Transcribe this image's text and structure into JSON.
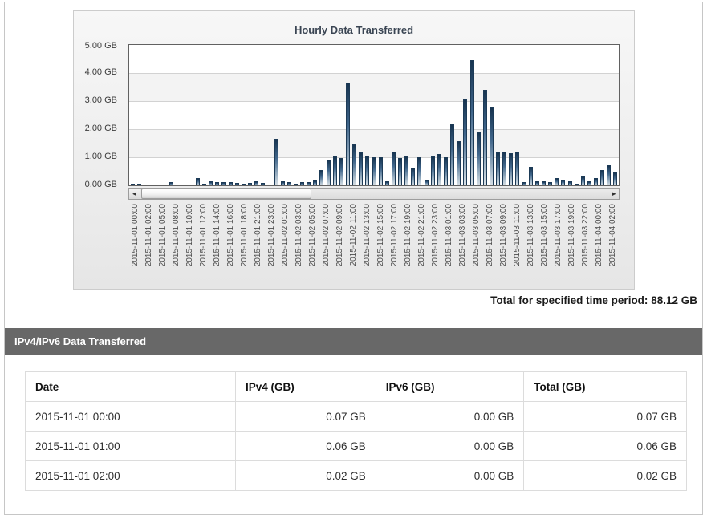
{
  "chart": {
    "title": "Hourly Data Transferred",
    "total_label": "Total for specified time period:",
    "total_value": "88.12 GB"
  },
  "chart_data": {
    "type": "bar",
    "title": "Hourly Data Transferred",
    "ylabel": "GB",
    "ylim": [
      0,
      5
    ],
    "grid": true,
    "y_ticks": [
      "5.00 GB",
      "4.00 GB",
      "3.00 GB",
      "2.00 GB",
      "1.00 GB",
      "0.00 GB"
    ],
    "x_tick_labels": [
      "2015-11-01 00:00",
      "2015-11-01 02:00",
      "2015-11-01 05:00",
      "2015-11-01 08:00",
      "2015-11-01 10:00",
      "2015-11-01 12:00",
      "2015-11-01 14:00",
      "2015-11-01 16:00",
      "2015-11-01 18:00",
      "2015-11-01 21:00",
      "2015-11-01 23:00",
      "2015-11-02 01:00",
      "2015-11-02 03:00",
      "2015-11-02 05:00",
      "2015-11-02 07:00",
      "2015-11-02 09:00",
      "2015-11-02 11:00",
      "2015-11-02 13:00",
      "2015-11-02 15:00",
      "2015-11-02 17:00",
      "2015-11-02 19:00",
      "2015-11-02 21:00",
      "2015-11-02 23:00",
      "2015-11-03 01:00",
      "2015-11-03 03:00",
      "2015-11-03 05:00",
      "2015-11-03 07:00",
      "2015-11-03 09:00",
      "2015-11-03 11:00",
      "2015-11-03 13:00",
      "2015-11-03 15:00",
      "2015-11-03 17:00",
      "2015-11-03 19:00",
      "2015-11-03 22:00",
      "2015-11-04 00:00",
      "2015-11-04 02:00"
    ],
    "values": [
      0.07,
      0.06,
      0.02,
      0.02,
      0.03,
      0.02,
      0.1,
      0.02,
      0.02,
      0.03,
      0.25,
      0.05,
      0.15,
      0.1,
      0.12,
      0.1,
      0.08,
      0.05,
      0.08,
      0.15,
      0.08,
      0.03,
      1.65,
      0.15,
      0.1,
      0.07,
      0.1,
      0.12,
      0.18,
      0.55,
      0.92,
      1.03,
      0.97,
      3.65,
      1.45,
      1.17,
      1.07,
      1.0,
      1.0,
      0.15,
      1.19,
      0.97,
      1.03,
      0.64,
      1.0,
      0.2,
      1.02,
      1.1,
      1.0,
      2.16,
      1.57,
      3.07,
      4.46,
      1.88,
      3.41,
      2.78,
      1.16,
      1.19,
      1.14,
      1.19,
      0.1,
      0.65,
      0.15,
      0.15,
      0.12,
      0.25,
      0.2,
      0.15,
      0.05,
      0.3,
      0.15,
      0.25,
      0.55,
      0.7,
      0.45
    ],
    "bar_color_top": "#173450",
    "bar_color_bottom": "#d8e0e6",
    "band_color": "#f3f3f3",
    "total_for_period": "88.12 GB",
    "legend_position": "none"
  },
  "scrollbar": {
    "left_arrow": "◄",
    "right_arrow": "►"
  },
  "table_section": {
    "header": "IPv4/IPv6 Data Transferred",
    "header_bg": "#686868",
    "columns": [
      "Date",
      "IPv4 (GB)",
      "IPv6 (GB)",
      "Total (GB)"
    ],
    "col_widths_pct": [
      31.8,
      21.2,
      22.4,
      24.6
    ],
    "rows": [
      [
        "2015-11-01 00:00",
        "0.07 GB",
        "0.00 GB",
        "0.07 GB"
      ],
      [
        "2015-11-01 01:00",
        "0.06 GB",
        "0.00 GB",
        "0.06 GB"
      ],
      [
        "2015-11-01 02:00",
        "0.02 GB",
        "0.00 GB",
        "0.02 GB"
      ]
    ]
  }
}
